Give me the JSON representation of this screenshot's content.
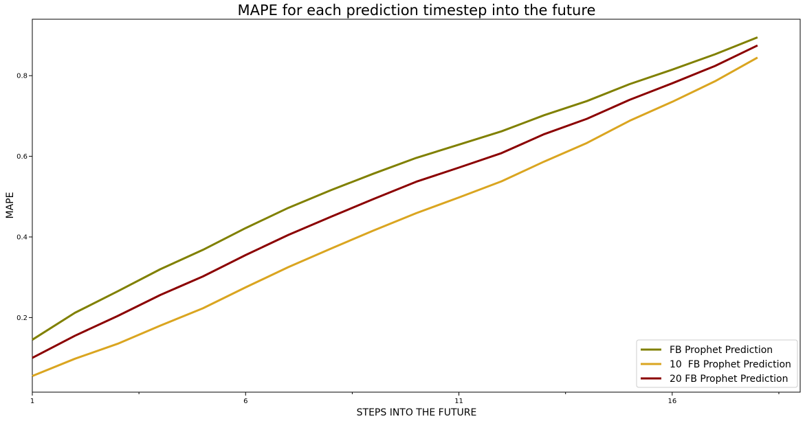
{
  "chart_data": {
    "type": "line",
    "title": "MAPE for each prediction timestep into the future",
    "xlabel": "STEPS INTO THE FUTURE",
    "ylabel": "MAPE",
    "x": [
      1,
      2,
      3,
      4,
      5,
      6,
      7,
      8,
      9,
      10,
      11,
      12,
      13,
      14,
      15,
      16,
      17,
      18
    ],
    "xlim": [
      1,
      19
    ],
    "ylim": [
      0.015,
      0.94
    ],
    "xticks": [
      1,
      6,
      11,
      16
    ],
    "xtick_labels": [
      "1",
      "6",
      "11",
      "16"
    ],
    "xminor_ticks": [
      3.5,
      8.5,
      13.5,
      18.5
    ],
    "yticks": [
      0.2,
      0.4,
      0.6,
      0.8
    ],
    "ytick_labels": [
      "0.2",
      "0.4",
      "0.6",
      "0.8"
    ],
    "grid": false,
    "legend_position": "bottom-right",
    "series": [
      {
        "name": "FB Prophet Prediction",
        "color": "#808000",
        "values": [
          0.145,
          0.212,
          0.265,
          0.32,
          0.368,
          0.422,
          0.472,
          0.516,
          0.557,
          0.596,
          0.629,
          0.662,
          0.702,
          0.737,
          0.779,
          0.815,
          0.853,
          0.895
        ]
      },
      {
        "name": "10  FB Prophet Prediction",
        "color": "#DAA520",
        "values": [
          0.055,
          0.098,
          0.135,
          0.18,
          0.223,
          0.275,
          0.325,
          0.371,
          0.416,
          0.459,
          0.498,
          0.538,
          0.587,
          0.633,
          0.688,
          0.735,
          0.786,
          0.845
        ]
      },
      {
        "name": "20 FB Prophet Prediction",
        "color": "#8B0000",
        "values": [
          0.1,
          0.155,
          0.204,
          0.256,
          0.302,
          0.355,
          0.405,
          0.45,
          0.494,
          0.537,
          0.572,
          0.608,
          0.655,
          0.693,
          0.74,
          0.781,
          0.824,
          0.875
        ]
      }
    ]
  }
}
